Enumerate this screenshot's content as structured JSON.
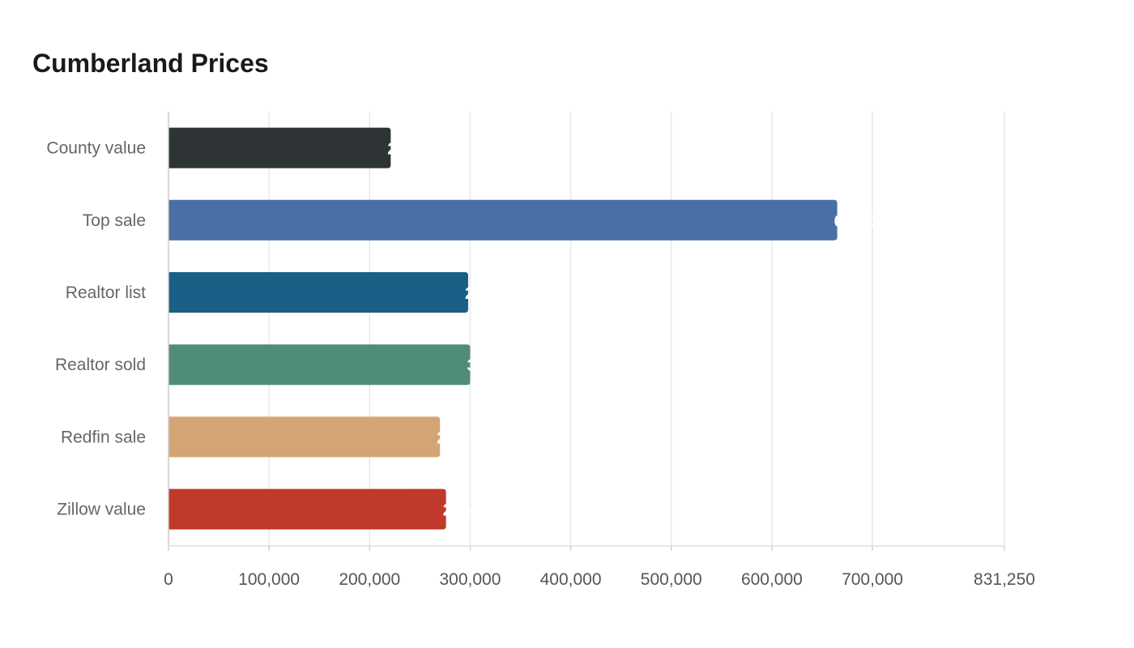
{
  "chart_data": {
    "type": "bar",
    "orientation": "horizontal",
    "title": "Cumberland Prices",
    "xlabel": "",
    "ylabel": "",
    "categories": [
      "County value",
      "Top sale",
      "Realtor list",
      "Realtor sold",
      "Redfin sale",
      "Zillow value"
    ],
    "values": [
      221000,
      665000,
      298000,
      300000,
      270000,
      276000
    ],
    "colors": [
      "#2e3436",
      "#4a6fa5",
      "#1a5f85",
      "#4f8d7a",
      "#d4a574",
      "#c0392b"
    ],
    "xlim": [
      0,
      831250
    ],
    "xticks": [
      0,
      100000,
      200000,
      300000,
      400000,
      500000,
      600000,
      700000,
      831250
    ],
    "xtick_labels": [
      "0",
      "100,000",
      "200,000",
      "300,000",
      "400,000",
      "500,000",
      "600,000",
      "700,000",
      "831,250"
    ],
    "grid": true,
    "legend": "none"
  }
}
